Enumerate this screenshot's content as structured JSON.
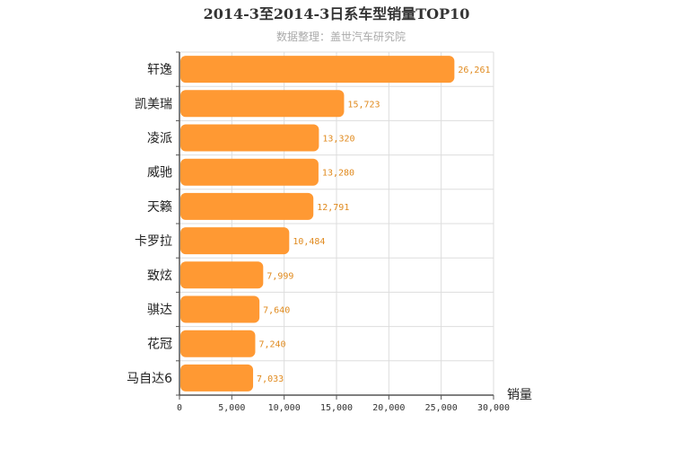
{
  "chart_data": {
    "type": "bar",
    "orientation": "horizontal",
    "title": "2014-3至2014-3日系车型销量TOP10",
    "subtitle": "数据整理：盖世汽车研究院",
    "xlabel": "销量",
    "categories": [
      "轩逸",
      "凯美瑞",
      "凌派",
      "威驰",
      "天籁",
      "卡罗拉",
      "致炫",
      "骐达",
      "花冠",
      "马自达6"
    ],
    "values": [
      26261,
      15723,
      13320,
      13280,
      12791,
      10484,
      7999,
      7640,
      7240,
      7033
    ],
    "value_labels": [
      "26,261",
      "15,723",
      "13,320",
      "13,280",
      "12,791",
      "10,484",
      "7,999",
      "7,640",
      "7,240",
      "7,033"
    ],
    "xlim": [
      0,
      30000
    ],
    "ticks": [
      0,
      5000,
      10000,
      15000,
      20000,
      25000,
      30000
    ],
    "tick_labels": [
      "0",
      "5,000",
      "10,000",
      "15,000",
      "20,000",
      "25,000",
      "30,000"
    ],
    "grid": true,
    "bar_color": "#ff9933",
    "label_color": "#e08a1e"
  }
}
